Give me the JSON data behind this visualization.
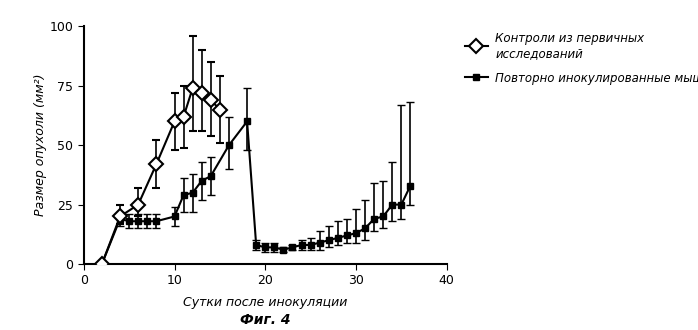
{
  "title": "",
  "xlabel": "Сутки после инокуляции",
  "ylabel": "Размер опухоли (мм²)",
  "fig_label": "Фиг. 4",
  "xlim": [
    0,
    38
  ],
  "ylim": [
    0,
    100
  ],
  "xticks": [
    0,
    10,
    20,
    30,
    40
  ],
  "yticks": [
    0,
    25,
    50,
    75,
    100
  ],
  "control_x": [
    2,
    4,
    6,
    8,
    10,
    11,
    12,
    13,
    14,
    15
  ],
  "control_y": [
    0,
    20,
    25,
    42,
    60,
    62,
    74,
    72,
    69,
    65
  ],
  "control_yerr_lo": [
    0,
    3,
    5,
    10,
    12,
    13,
    18,
    16,
    15,
    14
  ],
  "control_yerr_hi": [
    0,
    5,
    7,
    10,
    12,
    13,
    22,
    18,
    16,
    14
  ],
  "reinoc_x": [
    2,
    4,
    5,
    6,
    7,
    8,
    10,
    11,
    12,
    13,
    14,
    16,
    18,
    19,
    20,
    21,
    22,
    23,
    24,
    25,
    26,
    27,
    28,
    29,
    30,
    31,
    32,
    33,
    34,
    35,
    36
  ],
  "reinoc_y": [
    0,
    19,
    18,
    18,
    18,
    18,
    20,
    29,
    30,
    35,
    37,
    50,
    60,
    8,
    7,
    7,
    6,
    7,
    8,
    8,
    9,
    10,
    11,
    12,
    13,
    15,
    19,
    20,
    25,
    25,
    33
  ],
  "reinoc_yerr_lo": [
    0,
    3,
    3,
    3,
    3,
    3,
    4,
    7,
    8,
    8,
    8,
    10,
    12,
    2,
    2,
    2,
    1,
    1,
    2,
    2,
    3,
    3,
    3,
    3,
    4,
    5,
    5,
    5,
    7,
    6,
    8
  ],
  "reinoc_yerr_hi": [
    0,
    3,
    3,
    3,
    3,
    3,
    4,
    7,
    8,
    8,
    8,
    12,
    14,
    2,
    2,
    2,
    1,
    1,
    2,
    3,
    5,
    6,
    7,
    7,
    10,
    12,
    15,
    15,
    18,
    42,
    35
  ],
  "legend_label_control": "Контроли из первичных\nисследований",
  "legend_label_reinoc": "Повторно инокулированные мыши",
  "color_control": "#000000",
  "color_reinoc": "#000000",
  "background_color": "#ffffff"
}
